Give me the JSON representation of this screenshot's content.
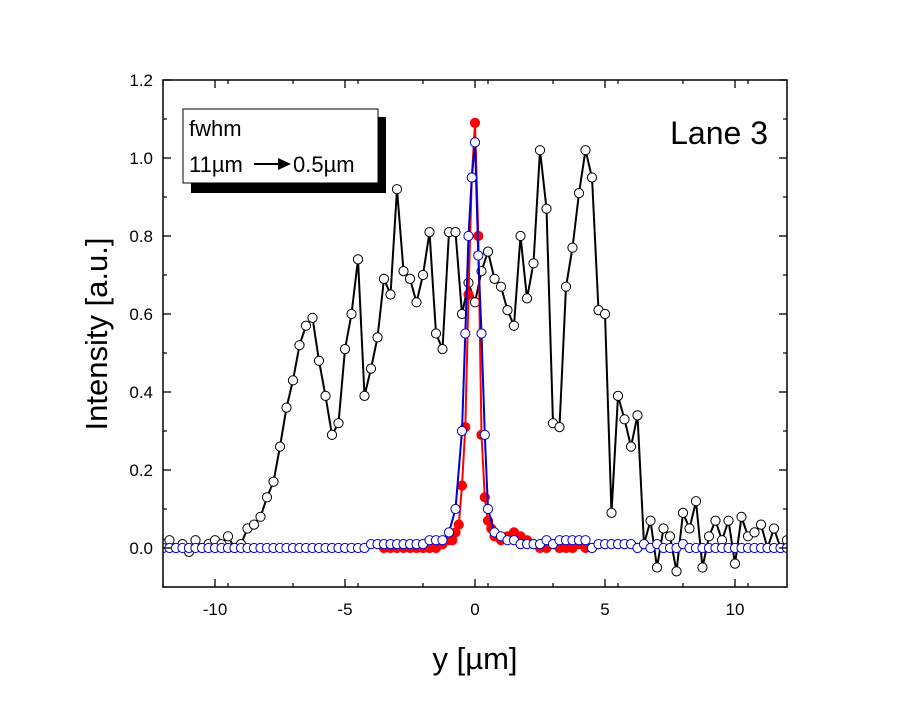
{
  "chart_data": {
    "type": "scatter",
    "xlabel": "y [µm]",
    "ylabel": "Intensity [a.u.]",
    "xlim": [
      -12,
      12
    ],
    "ylim": [
      -0.1,
      1.2
    ],
    "xticks": [
      -10,
      -5,
      0,
      5,
      10
    ],
    "xtick_labels": [
      "-10",
      "-5",
      "0",
      "5",
      "10"
    ],
    "yticks": [
      0.0,
      0.2,
      0.4,
      0.6,
      0.8,
      1.0,
      1.2
    ],
    "ytick_labels": [
      "0.0",
      "0.2",
      "0.4",
      "0.6",
      "0.8",
      "1.0",
      "1.2"
    ],
    "grid": false,
    "annotation": "Lane 3",
    "legend_box": {
      "line1": "fwhm",
      "from": "11µm",
      "to": "0.5µm",
      "placement": "top-left"
    },
    "colors": {
      "black_series": "#000000",
      "red_series": "#ff0000",
      "blue_series": "#0000cc",
      "background": "#ffffff"
    },
    "series": [
      {
        "color": "#000000",
        "marker": "open-circle",
        "x": [
          -12.0,
          -11.75,
          -11.5,
          -11.25,
          -11.0,
          -10.75,
          -10.5,
          -10.25,
          -10.0,
          -9.75,
          -9.5,
          -9.25,
          -9.0,
          -8.75,
          -8.5,
          -8.25,
          -8.0,
          -7.75,
          -7.5,
          -7.25,
          -7.0,
          -6.75,
          -6.5,
          -6.25,
          -6.0,
          -5.75,
          -5.5,
          -5.25,
          -5.0,
          -4.75,
          -4.5,
          -4.25,
          -4.0,
          -3.75,
          -3.5,
          -3.25,
          -3.0,
          -2.75,
          -2.5,
          -2.25,
          -2.0,
          -1.75,
          -1.5,
          -1.25,
          -1.0,
          -0.75,
          -0.5,
          -0.25,
          0.0,
          0.25,
          0.5,
          0.75,
          1.0,
          1.25,
          1.5,
          1.75,
          2.0,
          2.25,
          2.5,
          2.75,
          3.0,
          3.25,
          3.5,
          3.75,
          4.0,
          4.25,
          4.5,
          4.75,
          5.0,
          5.25,
          5.5,
          5.75,
          6.0,
          6.25,
          6.5,
          6.75,
          7.0,
          7.25,
          7.5,
          7.75,
          8.0,
          8.25,
          8.5,
          8.75,
          9.0,
          9.25,
          9.5,
          9.75,
          10.0,
          10.25,
          10.5,
          10.75,
          11.0,
          11.25,
          11.5,
          11.75,
          12.0
        ],
        "y": [
          0.01,
          0.02,
          0.0,
          0.01,
          -0.01,
          0.02,
          0.0,
          0.01,
          0.02,
          0.01,
          0.03,
          0.0,
          0.01,
          0.05,
          0.06,
          0.08,
          0.13,
          0.17,
          0.26,
          0.36,
          0.43,
          0.52,
          0.57,
          0.59,
          0.48,
          0.39,
          0.29,
          0.32,
          0.51,
          0.6,
          0.74,
          0.39,
          0.46,
          0.54,
          0.69,
          0.65,
          0.92,
          0.71,
          0.69,
          0.63,
          0.7,
          0.81,
          0.55,
          0.51,
          0.81,
          0.81,
          0.6,
          0.68,
          0.63,
          0.71,
          0.76,
          0.69,
          0.67,
          0.61,
          0.57,
          0.8,
          0.64,
          0.73,
          1.02,
          0.87,
          0.32,
          0.31,
          0.67,
          0.77,
          0.91,
          1.02,
          0.95,
          0.61,
          0.6,
          0.09,
          0.39,
          0.33,
          0.26,
          0.34,
          0.01,
          0.07,
          -0.05,
          0.05,
          0.03,
          -0.06,
          0.09,
          0.05,
          0.12,
          -0.05,
          0.03,
          0.07,
          0.02,
          0.07,
          -0.04,
          0.08,
          0.03,
          0.04,
          0.06,
          0.0,
          0.05,
          0.0,
          0.02
        ]
      },
      {
        "color": "#ff0000",
        "marker": "filled-circle",
        "x": [
          -3.5,
          -3.25,
          -3.0,
          -2.75,
          -2.5,
          -2.25,
          -2.0,
          -1.75,
          -1.5,
          -1.25,
          -1.0,
          -0.875,
          -0.75,
          -0.625,
          -0.5,
          -0.375,
          -0.25,
          -0.125,
          0.0,
          0.125,
          0.25,
          0.375,
          0.5,
          0.625,
          0.75,
          1.0,
          1.25,
          1.5,
          1.75,
          2.0,
          2.25,
          2.5,
          2.75,
          3.0,
          3.25,
          3.5,
          3.75,
          4.0,
          4.25,
          4.5
        ],
        "y": [
          0.0,
          0.0,
          0.0,
          0.0,
          0.0,
          0.0,
          0.0,
          0.0,
          0.0,
          0.01,
          0.02,
          0.02,
          0.04,
          0.06,
          0.16,
          0.31,
          0.65,
          0.95,
          1.09,
          0.8,
          0.29,
          0.13,
          0.07,
          0.05,
          0.03,
          0.02,
          0.03,
          0.04,
          0.03,
          0.02,
          0.01,
          0.0,
          0.0,
          0.01,
          0.0,
          0.0,
          0.0,
          0.01,
          0.0,
          0.0
        ]
      },
      {
        "color": "#0000cc",
        "marker": "open-circle",
        "x": [
          -12.0,
          -11.75,
          -11.5,
          -11.25,
          -11.0,
          -10.75,
          -10.5,
          -10.25,
          -10.0,
          -9.75,
          -9.5,
          -9.25,
          -9.0,
          -8.75,
          -8.5,
          -8.25,
          -8.0,
          -7.75,
          -7.5,
          -7.25,
          -7.0,
          -6.75,
          -6.5,
          -6.25,
          -6.0,
          -5.75,
          -5.5,
          -5.25,
          -5.0,
          -4.75,
          -4.5,
          -4.25,
          -4.0,
          -3.75,
          -3.5,
          -3.25,
          -3.0,
          -2.75,
          -2.5,
          -2.25,
          -2.0,
          -1.75,
          -1.5,
          -1.25,
          -1.0,
          -0.75,
          -0.5,
          -0.375,
          -0.25,
          -0.125,
          0.0,
          0.125,
          0.25,
          0.375,
          0.5,
          0.75,
          1.0,
          1.25,
          1.5,
          1.75,
          2.0,
          2.25,
          2.5,
          2.75,
          3.0,
          3.25,
          3.5,
          3.75,
          4.0,
          4.25,
          4.5,
          4.75,
          5.0,
          5.25,
          5.5,
          5.75,
          6.0,
          6.25,
          6.5,
          6.75,
          7.0,
          7.25,
          7.5,
          7.75,
          8.0,
          8.25,
          8.5,
          8.75,
          9.0,
          9.25,
          9.5,
          9.75,
          10.0,
          10.25,
          10.5,
          10.75,
          11.0,
          11.25,
          11.5,
          11.75,
          12.0
        ],
        "y": [
          0.0,
          0.0,
          0.0,
          0.0,
          0.0,
          0.0,
          0.0,
          0.0,
          0.0,
          0.0,
          0.0,
          0.0,
          0.0,
          0.0,
          0.0,
          0.0,
          0.0,
          0.0,
          0.0,
          0.0,
          0.0,
          0.0,
          0.0,
          0.0,
          0.0,
          0.0,
          0.0,
          0.0,
          0.0,
          0.0,
          0.0,
          0.0,
          0.01,
          0.01,
          0.01,
          0.01,
          0.01,
          0.01,
          0.01,
          0.01,
          0.01,
          0.02,
          0.02,
          0.02,
          0.04,
          0.1,
          0.3,
          0.55,
          0.8,
          0.95,
          1.04,
          0.75,
          0.55,
          0.29,
          0.1,
          0.04,
          0.03,
          0.02,
          0.02,
          0.01,
          0.01,
          0.01,
          0.01,
          0.02,
          0.01,
          0.02,
          0.02,
          0.02,
          0.02,
          0.02,
          0.0,
          0.01,
          0.01,
          0.01,
          0.01,
          0.01,
          0.01,
          0.0,
          0.01,
          0.0,
          0.01,
          0.0,
          0.0,
          0.0,
          0.01,
          0.0,
          0.0,
          0.0,
          0.0,
          0.0,
          0.0,
          0.0,
          0.0,
          0.0,
          0.0,
          0.0,
          0.0,
          0.0,
          0.0,
          0.0,
          0.0
        ]
      }
    ]
  }
}
